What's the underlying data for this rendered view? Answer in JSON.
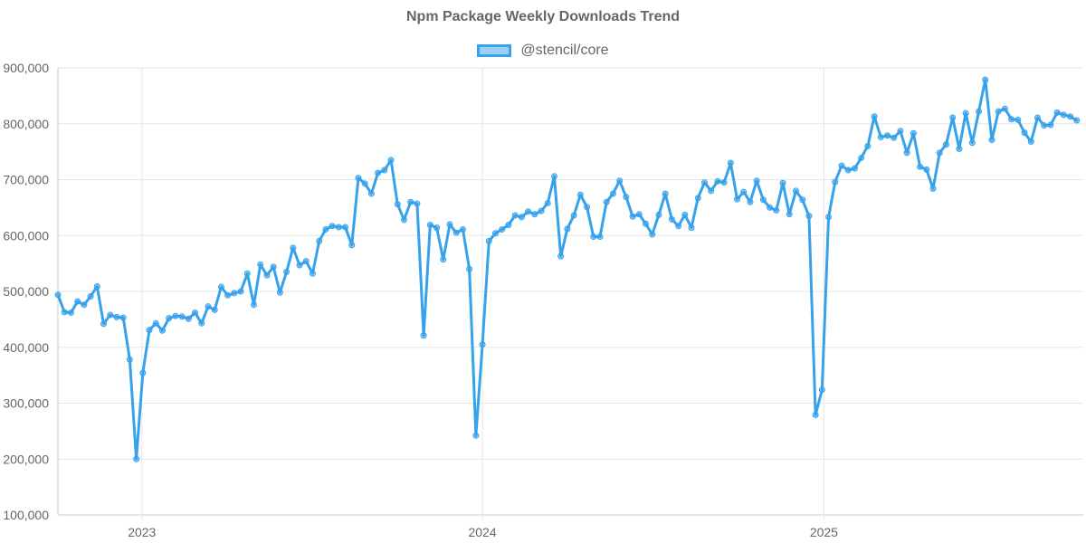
{
  "chart_data": {
    "type": "line",
    "title": "Npm Package Weekly Downloads Trend",
    "legend_position": "top",
    "grid": true,
    "ylim": [
      100000,
      900000
    ],
    "yticks": [
      "900,000",
      "800,000",
      "700,000",
      "600,000",
      "500,000",
      "400,000",
      "300,000",
      "200,000",
      "100,000"
    ],
    "ytick_values": [
      900000,
      800000,
      700000,
      600000,
      500000,
      400000,
      300000,
      200000,
      100000
    ],
    "xlim": [
      "2022-10-03",
      "2025-10-06"
    ],
    "xticks": [
      {
        "label": "2023",
        "date": "2023-01-01"
      },
      {
        "label": "2024",
        "date": "2024-01-01"
      },
      {
        "label": "2025",
        "date": "2025-01-01"
      }
    ],
    "series": [
      {
        "name": "@stencil/core",
        "color": "#36a2eb",
        "fill": "rgba(54,162,235,0.5)",
        "points": [
          [
            "2022-10-03",
            494000
          ],
          [
            "2022-10-10",
            463000
          ],
          [
            "2022-10-17",
            462000
          ],
          [
            "2022-10-24",
            482000
          ],
          [
            "2022-10-31",
            476000
          ],
          [
            "2022-11-07",
            491000
          ],
          [
            "2022-11-14",
            509000
          ],
          [
            "2022-11-21",
            442000
          ],
          [
            "2022-11-28",
            458000
          ],
          [
            "2022-12-05",
            454000
          ],
          [
            "2022-12-12",
            453000
          ],
          [
            "2022-12-19",
            378000
          ],
          [
            "2022-12-26",
            200000
          ],
          [
            "2023-01-02",
            354000
          ],
          [
            "2023-01-09",
            431000
          ],
          [
            "2023-01-16",
            443000
          ],
          [
            "2023-01-23",
            430000
          ],
          [
            "2023-01-30",
            452000
          ],
          [
            "2023-02-06",
            456000
          ],
          [
            "2023-02-13",
            455000
          ],
          [
            "2023-02-20",
            451000
          ],
          [
            "2023-02-27",
            462000
          ],
          [
            "2023-03-06",
            443000
          ],
          [
            "2023-03-13",
            473000
          ],
          [
            "2023-03-20",
            467000
          ],
          [
            "2023-03-27",
            508000
          ],
          [
            "2023-04-03",
            493000
          ],
          [
            "2023-04-10",
            497000
          ],
          [
            "2023-04-17",
            500000
          ],
          [
            "2023-04-24",
            532000
          ],
          [
            "2023-05-01",
            476000
          ],
          [
            "2023-05-08",
            548000
          ],
          [
            "2023-05-15",
            529000
          ],
          [
            "2023-05-22",
            544000
          ],
          [
            "2023-05-29",
            498000
          ],
          [
            "2023-06-05",
            535000
          ],
          [
            "2023-06-12",
            578000
          ],
          [
            "2023-06-19",
            547000
          ],
          [
            "2023-06-26",
            554000
          ],
          [
            "2023-07-03",
            532000
          ],
          [
            "2023-07-10",
            590000
          ],
          [
            "2023-07-17",
            611000
          ],
          [
            "2023-07-24",
            617000
          ],
          [
            "2023-07-31",
            615000
          ],
          [
            "2023-08-07",
            615000
          ],
          [
            "2023-08-14",
            583000
          ],
          [
            "2023-08-21",
            703000
          ],
          [
            "2023-08-28",
            693000
          ],
          [
            "2023-09-04",
            675000
          ],
          [
            "2023-09-11",
            712000
          ],
          [
            "2023-09-18",
            717000
          ],
          [
            "2023-09-25",
            735000
          ],
          [
            "2023-10-02",
            656000
          ],
          [
            "2023-10-09",
            628000
          ],
          [
            "2023-10-16",
            660000
          ],
          [
            "2023-10-23",
            657000
          ],
          [
            "2023-10-30",
            421000
          ],
          [
            "2023-11-06",
            619000
          ],
          [
            "2023-11-13",
            614000
          ],
          [
            "2023-11-20",
            557000
          ],
          [
            "2023-11-27",
            620000
          ],
          [
            "2023-12-04",
            605000
          ],
          [
            "2023-12-11",
            611000
          ],
          [
            "2023-12-18",
            540000
          ],
          [
            "2023-12-25",
            242000
          ],
          [
            "2024-01-01",
            405000
          ],
          [
            "2024-01-08",
            590000
          ],
          [
            "2024-01-15",
            604000
          ],
          [
            "2024-01-22",
            611000
          ],
          [
            "2024-01-29",
            619000
          ],
          [
            "2024-02-05",
            636000
          ],
          [
            "2024-02-12",
            633000
          ],
          [
            "2024-02-19",
            643000
          ],
          [
            "2024-02-26",
            638000
          ],
          [
            "2024-03-04",
            644000
          ],
          [
            "2024-03-11",
            658000
          ],
          [
            "2024-03-18",
            706000
          ],
          [
            "2024-03-25",
            563000
          ],
          [
            "2024-04-01",
            612000
          ],
          [
            "2024-04-08",
            636000
          ],
          [
            "2024-04-15",
            673000
          ],
          [
            "2024-04-22",
            651000
          ],
          [
            "2024-04-29",
            598000
          ],
          [
            "2024-05-06",
            598000
          ],
          [
            "2024-05-13",
            660000
          ],
          [
            "2024-05-20",
            675000
          ],
          [
            "2024-05-27",
            698000
          ],
          [
            "2024-06-03",
            669000
          ],
          [
            "2024-06-10",
            634000
          ],
          [
            "2024-06-17",
            638000
          ],
          [
            "2024-06-24",
            621000
          ],
          [
            "2024-07-01",
            602000
          ],
          [
            "2024-07-08",
            637000
          ],
          [
            "2024-07-15",
            675000
          ],
          [
            "2024-07-22",
            629000
          ],
          [
            "2024-07-29",
            617000
          ],
          [
            "2024-08-05",
            637000
          ],
          [
            "2024-08-12",
            614000
          ],
          [
            "2024-08-19",
            667000
          ],
          [
            "2024-08-26",
            695000
          ],
          [
            "2024-09-02",
            680000
          ],
          [
            "2024-09-09",
            697000
          ],
          [
            "2024-09-16",
            695000
          ],
          [
            "2024-09-23",
            730000
          ],
          [
            "2024-09-30",
            665000
          ],
          [
            "2024-10-07",
            678000
          ],
          [
            "2024-10-14",
            660000
          ],
          [
            "2024-10-21",
            698000
          ],
          [
            "2024-10-28",
            664000
          ],
          [
            "2024-11-04",
            650000
          ],
          [
            "2024-11-11",
            645000
          ],
          [
            "2024-11-18",
            694000
          ],
          [
            "2024-11-25",
            638000
          ],
          [
            "2024-12-02",
            680000
          ],
          [
            "2024-12-09",
            664000
          ],
          [
            "2024-12-16",
            635000
          ],
          [
            "2024-12-23",
            279000
          ],
          [
            "2024-12-30",
            324000
          ],
          [
            "2025-01-06",
            633000
          ],
          [
            "2025-01-13",
            696000
          ],
          [
            "2025-01-20",
            725000
          ],
          [
            "2025-01-27",
            717000
          ],
          [
            "2025-02-03",
            720000
          ],
          [
            "2025-02-10",
            739000
          ],
          [
            "2025-02-17",
            760000
          ],
          [
            "2025-02-24",
            813000
          ],
          [
            "2025-03-03",
            776000
          ],
          [
            "2025-03-10",
            779000
          ],
          [
            "2025-03-17",
            775000
          ],
          [
            "2025-03-24",
            787000
          ],
          [
            "2025-03-31",
            748000
          ],
          [
            "2025-04-07",
            783000
          ],
          [
            "2025-04-14",
            723000
          ],
          [
            "2025-04-21",
            718000
          ],
          [
            "2025-04-28",
            684000
          ],
          [
            "2025-05-05",
            748000
          ],
          [
            "2025-05-12",
            763000
          ],
          [
            "2025-05-19",
            811000
          ],
          [
            "2025-05-26",
            755000
          ],
          [
            "2025-06-02",
            819000
          ],
          [
            "2025-06-09",
            766000
          ],
          [
            "2025-06-16",
            822000
          ],
          [
            "2025-06-23",
            879000
          ],
          [
            "2025-06-30",
            771000
          ],
          [
            "2025-07-07",
            822000
          ],
          [
            "2025-07-14",
            827000
          ],
          [
            "2025-07-21",
            808000
          ],
          [
            "2025-07-28",
            807000
          ],
          [
            "2025-08-04",
            784000
          ],
          [
            "2025-08-11",
            768000
          ],
          [
            "2025-08-18",
            811000
          ],
          [
            "2025-08-25",
            797000
          ],
          [
            "2025-09-01",
            798000
          ],
          [
            "2025-09-08",
            820000
          ],
          [
            "2025-09-15",
            816000
          ],
          [
            "2025-09-22",
            813000
          ],
          [
            "2025-09-29",
            806000
          ]
        ]
      }
    ]
  }
}
